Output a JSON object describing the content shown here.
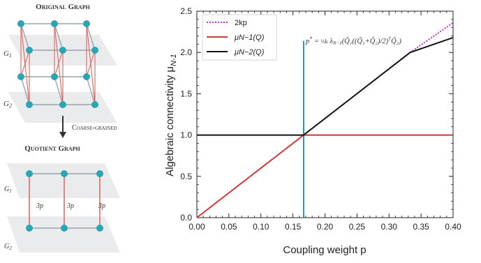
{
  "left_panel": {
    "top_title": "Original Graph",
    "layer_labels_top": [
      "G",
      "G"
    ],
    "layer_subscripts": [
      "1",
      "2"
    ],
    "arrow_label": "Coarse-grained",
    "bottom_title": "Quotient Graph",
    "edge_labels": [
      "3p",
      "3p",
      "3p"
    ]
  },
  "colors": {
    "node": "#2aa6b3",
    "intra_edge": "#9aa3ab",
    "inter_edge": "#e0625a",
    "plane": "#e6e8ea",
    "line_2kp": "#cc33cc",
    "line_muN1": "#d63535",
    "line_muN2": "#111111",
    "line_pstar": "#1f9aab"
  },
  "chart_data": {
    "type": "line",
    "xlabel": "Coupling weight p",
    "ylabel": "Algebraic connectivity μ",
    "ylabel_sub": "N-1",
    "xlim": [
      0.0,
      0.4
    ],
    "ylim": [
      0.0,
      2.5
    ],
    "x_ticks": [
      "0.00",
      "0.05",
      "0.10",
      "0.15",
      "0.20",
      "0.25",
      "0.30",
      "0.35",
      "0.40"
    ],
    "x_tick_values": [
      0.0,
      0.05,
      0.1,
      0.15,
      0.2,
      0.25,
      0.3,
      0.35,
      0.4
    ],
    "y_ticks": [
      "0.0",
      "0.5",
      "1.0",
      "1.5",
      "2.0",
      "2.5"
    ],
    "y_tick_values": [
      0.0,
      0.5,
      1.0,
      1.5,
      2.0,
      2.5
    ],
    "legend_placement": "top-left",
    "series": [
      {
        "name": "2kp",
        "style": "dotted",
        "x": [
          0.333,
          0.4
        ],
        "y": [
          2.0,
          2.36
        ]
      },
      {
        "name": "μN−1(Q)",
        "style": "solid",
        "x": [
          0.0,
          0.1667,
          0.4
        ],
        "y": [
          0.0,
          1.0,
          1.0
        ]
      },
      {
        "name": "μN−2(Q)",
        "style": "solid",
        "x": [
          0.0,
          0.1667,
          0.333,
          0.4
        ],
        "y": [
          1.0,
          1.0,
          2.0,
          2.18
        ]
      }
    ],
    "vertical_line": {
      "x": 0.1667,
      "y_top": 2.14
    },
    "annotation": "p* = 1/2k λN−1(Q̃1 ((Q̃1+Q̃2)/2)† Q̃2)"
  }
}
